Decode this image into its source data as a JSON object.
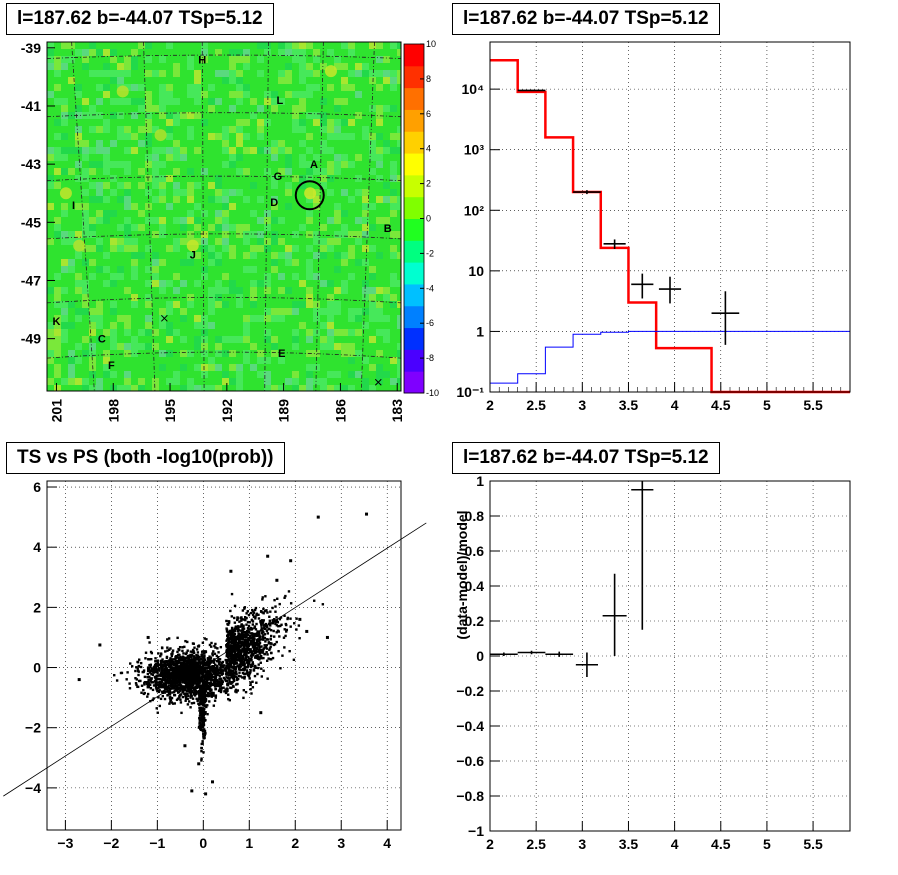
{
  "chart_data": [
    {
      "type": "heatmap",
      "title": "l=187.62 b=-44.07 TSp=5.12",
      "xlabel": "",
      "ylabel": "",
      "xlim": [
        201.5,
        182.8
      ],
      "ylim": [
        -50.8,
        -38.8
      ],
      "x_ticks": [
        "201",
        "198",
        "195",
        "192",
        "189",
        "186",
        "183"
      ],
      "y_ticks": [
        "-39",
        "-41",
        "-43",
        "-45",
        "-47",
        "-49"
      ],
      "colorbar": {
        "min": -10,
        "max": 10,
        "ticks": [
          "10",
          "8",
          "6",
          "4",
          "2",
          "0",
          "-2",
          "-4",
          "-6",
          "-8",
          "-10"
        ]
      },
      "source_labels": [
        {
          "label": "H",
          "l": 193.3,
          "b": -39.4
        },
        {
          "label": "L",
          "l": 189.2,
          "b": -40.8
        },
        {
          "label": "A",
          "l": 187.4,
          "b": -43.0
        },
        {
          "label": "G",
          "l": 189.3,
          "b": -43.4
        },
        {
          "label": "D",
          "l": 189.5,
          "b": -44.3
        },
        {
          "label": "I",
          "l": 200.1,
          "b": -44.4
        },
        {
          "label": "B",
          "l": 183.5,
          "b": -45.2
        },
        {
          "label": "J",
          "l": 193.8,
          "b": -46.1
        },
        {
          "label": "K",
          "l": 201.0,
          "b": -48.4
        },
        {
          "label": "C",
          "l": 198.6,
          "b": -49.0
        },
        {
          "label": "E",
          "l": 189.1,
          "b": -49.5
        },
        {
          "label": "F",
          "l": 198.1,
          "b": -49.9
        }
      ],
      "target_circle": {
        "l": 187.62,
        "b": -44.07
      }
    },
    {
      "type": "line",
      "title": "l=187.62 b=-44.07 TSp=5.12",
      "xlabel": "",
      "ylabel": "",
      "xlim": [
        2,
        5.9
      ],
      "ylim": [
        0.1,
        60000
      ],
      "log_y": true,
      "x_ticks": [
        "2",
        "2.5",
        "3",
        "3.5",
        "4",
        "4.5",
        "5",
        "5.5"
      ],
      "y_ticks": [
        "10⁻¹",
        "1",
        "10",
        "10²",
        "10³",
        "10⁴"
      ],
      "series": [
        {
          "style": "step",
          "color": "#ff0000",
          "edges": [
            2,
            2.3,
            2.6,
            2.9,
            3.2,
            3.5,
            3.8,
            4.1,
            4.4,
            5.9
          ],
          "values": [
            30000,
            9000,
            1600,
            200,
            24,
            3,
            0.53,
            0.53,
            0.1
          ]
        },
        {
          "style": "step",
          "color": "#0000ff",
          "edges": [
            2,
            2.3,
            2.6,
            2.9,
            3.2,
            3.5,
            5.9
          ],
          "values": [
            0.14,
            0.2,
            0.55,
            0.9,
            0.97,
            1.0
          ]
        },
        {
          "style": "errorbars",
          "color": "#000000",
          "points": [
            {
              "x": 2.45,
              "xerr": 0.15,
              "y": 9500,
              "ylo": 9300,
              "yhi": 9700
            },
            {
              "x": 3.05,
              "xerr": 0.15,
              "y": 200,
              "ylo": 185,
              "yhi": 215
            },
            {
              "x": 3.35,
              "xerr": 0.12,
              "y": 28,
              "ylo": 23,
              "yhi": 33
            },
            {
              "x": 3.65,
              "xerr": 0.12,
              "y": 6,
              "ylo": 3.5,
              "yhi": 9
            },
            {
              "x": 3.95,
              "xerr": 0.12,
              "y": 5,
              "ylo": 2.9,
              "yhi": 8
            },
            {
              "x": 4.55,
              "xerr": 0.15,
              "y": 2,
              "ylo": 0.6,
              "yhi": 4.6
            }
          ]
        }
      ]
    },
    {
      "type": "scatter",
      "title": "TS vs PS (both -log10(prob))",
      "xlabel": "",
      "ylabel": "",
      "xlim": [
        -3.4,
        4.3
      ],
      "ylim": [
        -5.4,
        6.2
      ],
      "x_ticks": [
        "−3",
        "−2",
        "−1",
        "0",
        "1",
        "2",
        "3",
        "4"
      ],
      "y_ticks": [
        "−4",
        "−2",
        "0",
        "2",
        "4",
        "6"
      ],
      "reference_line": {
        "slope": 0.987,
        "intercept": 0.02
      },
      "outliers": [
        {
          "x": 2.5,
          "y": 5.0
        },
        {
          "x": 3.55,
          "y": 5.1
        },
        {
          "x": 1.4,
          "y": 3.7
        },
        {
          "x": 1.9,
          "y": 3.55
        },
        {
          "x": 0.05,
          "y": -4.2
        },
        {
          "x": -0.25,
          "y": -4.1
        },
        {
          "x": -2.7,
          "y": -0.4
        },
        {
          "x": -2.25,
          "y": 0.75
        },
        {
          "x": 0.2,
          "y": -3.8
        },
        {
          "x": 2.1,
          "y": 1.6
        },
        {
          "x": 2.25,
          "y": 1.2
        },
        {
          "x": 1.25,
          "y": -1.5
        },
        {
          "x": 0.6,
          "y": 3.2
        },
        {
          "x": -1.2,
          "y": 1.0
        },
        {
          "x": 2.7,
          "y": 1.0
        },
        {
          "x": -0.1,
          "y": -3.2
        },
        {
          "x": -0.4,
          "y": -2.6
        },
        {
          "x": 1.6,
          "y": 2.9
        }
      ],
      "cloud_points": 3000
    },
    {
      "type": "scatter",
      "title": "l=187.62 b=-44.07 TSp=5.12",
      "xlabel": "",
      "ylabel": "(data-model)/model",
      "xlim": [
        2,
        5.9
      ],
      "ylim": [
        -1,
        1
      ],
      "x_ticks": [
        "2",
        "2.5",
        "3",
        "3.5",
        "4",
        "4.5",
        "5",
        "5.5"
      ],
      "y_ticks": [
        "−1",
        "−0.8",
        "−0.6",
        "−0.4",
        "−0.2",
        "0",
        "0.2",
        "0.4",
        "0.6",
        "0.8",
        "1"
      ],
      "points": [
        {
          "x": 2.15,
          "xerr": 0.15,
          "y": 0.01,
          "ylo": 0.0,
          "yhi": 0.02
        },
        {
          "x": 2.45,
          "xerr": 0.15,
          "y": 0.02,
          "ylo": 0.01,
          "yhi": 0.03
        },
        {
          "x": 2.75,
          "xerr": 0.15,
          "y": 0.01,
          "ylo": -0.005,
          "yhi": 0.025
        },
        {
          "x": 3.05,
          "xerr": 0.12,
          "y": -0.05,
          "ylo": -0.12,
          "yhi": 0.02
        },
        {
          "x": 3.35,
          "xerr": 0.13,
          "y": 0.23,
          "ylo": 0.0,
          "yhi": 0.47
        },
        {
          "x": 3.65,
          "xerr": 0.12,
          "y": 0.95,
          "ylo": 0.15,
          "yhi": 1.0
        }
      ]
    }
  ]
}
